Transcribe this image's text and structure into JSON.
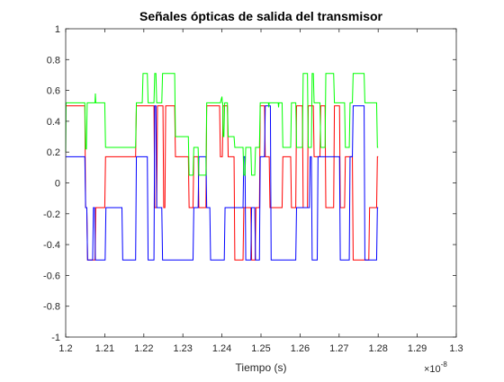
{
  "chart_data": {
    "type": "line",
    "title": "Señales ópticas de salida del transmisor",
    "xlabel": "Tiempo (s)",
    "ylabel": "",
    "x_exponent": {
      "base": "×10",
      "exp": "-8"
    },
    "xlim": [
      1.2,
      1.3
    ],
    "ylim": [
      -1,
      1
    ],
    "xticks": [
      "1.2",
      "1.21",
      "1.22",
      "1.23",
      "1.24",
      "1.25",
      "1.26",
      "1.27",
      "1.28",
      "1.29",
      "1.3"
    ],
    "yticks": [
      "-1",
      "-0.8",
      "-0.6",
      "-0.4",
      "-0.2",
      "0",
      "0.2",
      "0.4",
      "0.6",
      "0.8",
      "1"
    ],
    "grid": false,
    "legend": "none",
    "series": [
      {
        "color": "#ff0000",
        "x": [
          1.2,
          1.2049,
          1.2051,
          1.2054,
          1.2056,
          1.2075,
          1.2077,
          1.21,
          1.2102,
          1.2179,
          1.2181,
          1.2226,
          1.2228,
          1.2233,
          1.2235,
          1.2249,
          1.2251,
          1.2254,
          1.2256,
          1.2279,
          1.2281,
          1.2314,
          1.2316,
          1.2326,
          1.2328,
          1.2339,
          1.2341,
          1.2359,
          1.2361,
          1.2394,
          1.2396,
          1.2401,
          1.2403,
          1.2414,
          1.2416,
          1.2431,
          1.2433,
          1.2454,
          1.2456,
          1.2474,
          1.2476,
          1.2485,
          1.2487,
          1.2496,
          1.2498,
          1.2509,
          1.2511,
          1.2521,
          1.2523,
          1.2554,
          1.2556,
          1.2576,
          1.2578,
          1.2589,
          1.2591,
          1.2606,
          1.2608,
          1.2619,
          1.2621,
          1.2634,
          1.2636,
          1.2651,
          1.2653,
          1.2664,
          1.2666,
          1.2686,
          1.2688,
          1.2701,
          1.2703,
          1.2714,
          1.2716,
          1.2734,
          1.2736,
          1.2776,
          1.2778,
          1.2796,
          1.2798,
          1.28
        ],
        "y": [
          0.5,
          0.5,
          -0.16,
          -0.16,
          -0.5,
          -0.5,
          -0.16,
          -0.16,
          0.17,
          0.17,
          0.5,
          0.5,
          -0.16,
          -0.16,
          0.5,
          0.5,
          -0.16,
          -0.16,
          0.5,
          0.5,
          0.17,
          0.17,
          -0.16,
          -0.16,
          0.17,
          0.17,
          -0.16,
          -0.16,
          0.5,
          0.5,
          0.17,
          0.17,
          0.5,
          0.5,
          0.17,
          0.17,
          -0.5,
          -0.5,
          -0.16,
          -0.16,
          -0.5,
          -0.5,
          -0.16,
          -0.16,
          0.5,
          0.5,
          0.17,
          0.17,
          -0.16,
          -0.16,
          0.17,
          0.17,
          -0.16,
          -0.16,
          0.5,
          0.5,
          -0.16,
          -0.16,
          0.5,
          0.5,
          0.17,
          0.17,
          0.5,
          0.5,
          -0.16,
          -0.16,
          0.5,
          0.5,
          -0.16,
          -0.16,
          0.17,
          0.17,
          -0.5,
          -0.5,
          -0.16,
          -0.16,
          0.17,
          0.17
        ]
      },
      {
        "color": "#0000ff",
        "x": [
          1.2,
          1.2049,
          1.2051,
          1.2054,
          1.2056,
          1.2069,
          1.2071,
          1.2074,
          1.2076,
          1.2101,
          1.2103,
          1.2144,
          1.2146,
          1.2179,
          1.2181,
          1.2209,
          1.2211,
          1.2226,
          1.2228,
          1.2231,
          1.2233,
          1.2246,
          1.2248,
          1.2326,
          1.2328,
          1.2339,
          1.2341,
          1.2359,
          1.2361,
          1.2369,
          1.2371,
          1.2406,
          1.2408,
          1.2454,
          1.2456,
          1.2459,
          1.2461,
          1.2474,
          1.2476,
          1.2484,
          1.2486,
          1.2496,
          1.2498,
          1.2509,
          1.2511,
          1.2524,
          1.2526,
          1.2589,
          1.2591,
          1.2624,
          1.2626,
          1.2629,
          1.2631,
          1.2644,
          1.2646,
          1.2701,
          1.2703,
          1.2726,
          1.2728,
          1.2734,
          1.2736,
          1.2764,
          1.2766,
          1.2796,
          1.2798,
          1.28
        ],
        "y": [
          0.17,
          0.17,
          -0.16,
          -0.16,
          -0.5,
          -0.5,
          -0.16,
          -0.16,
          -0.5,
          -0.5,
          -0.16,
          -0.16,
          -0.5,
          -0.5,
          0.17,
          0.17,
          -0.5,
          -0.5,
          0.5,
          0.5,
          -0.16,
          -0.16,
          -0.5,
          -0.5,
          -0.16,
          -0.16,
          0.17,
          0.17,
          -0.16,
          -0.16,
          -0.5,
          -0.5,
          -0.16,
          -0.16,
          0.17,
          0.17,
          -0.5,
          -0.5,
          -0.16,
          -0.16,
          -0.5,
          -0.5,
          0.17,
          0.17,
          0.5,
          0.5,
          -0.5,
          -0.5,
          -0.16,
          -0.16,
          0.17,
          0.17,
          -0.5,
          -0.5,
          0.17,
          0.17,
          -0.5,
          -0.5,
          0.17,
          0.17,
          0.5,
          0.5,
          -0.5,
          -0.5,
          -0.16,
          -0.16
        ]
      },
      {
        "color": "#00ff00",
        "x": [
          1.2,
          1.2001,
          1.2002,
          1.2049,
          1.2051,
          1.2053,
          1.2055,
          1.2075,
          1.2076,
          1.2077,
          1.2078,
          1.21,
          1.2102,
          1.2179,
          1.2181,
          1.2196,
          1.2198,
          1.2209,
          1.2211,
          1.2226,
          1.2228,
          1.2231,
          1.2233,
          1.2246,
          1.2248,
          1.2279,
          1.2281,
          1.2314,
          1.2316,
          1.2326,
          1.2328,
          1.2339,
          1.2341,
          1.2359,
          1.2361,
          1.2369,
          1.2371,
          1.2394,
          1.2396,
          1.24,
          1.2401,
          1.2402,
          1.2403,
          1.2405,
          1.2407,
          1.2414,
          1.2416,
          1.2431,
          1.2433,
          1.2454,
          1.2456,
          1.2459,
          1.2461,
          1.2474,
          1.2476,
          1.2484,
          1.2486,
          1.2496,
          1.2498,
          1.2509,
          1.2511,
          1.2519,
          1.252,
          1.2521,
          1.2523,
          1.2544,
          1.2545,
          1.2546,
          1.2554,
          1.2556,
          1.2576,
          1.2578,
          1.2589,
          1.2591,
          1.2606,
          1.2608,
          1.2619,
          1.2621,
          1.2629,
          1.2631,
          1.2634,
          1.2636,
          1.2651,
          1.2653,
          1.2664,
          1.2666,
          1.2686,
          1.2688,
          1.2701,
          1.2703,
          1.2714,
          1.2716,
          1.2726,
          1.2728,
          1.2734,
          1.2736,
          1.2764,
          1.2766,
          1.2776,
          1.2778,
          1.2796,
          1.2798,
          1.28
        ],
        "y": [
          0.2,
          0.52,
          0.52,
          0.52,
          0.22,
          0.22,
          0.52,
          0.52,
          0.58,
          0.52,
          0.52,
          0.52,
          0.23,
          0.23,
          0.52,
          0.52,
          0.71,
          0.71,
          0.52,
          0.52,
          0.71,
          0.71,
          0.52,
          0.52,
          0.71,
          0.71,
          0.3,
          0.3,
          0.05,
          0.05,
          0.23,
          0.23,
          0.05,
          0.05,
          0.52,
          0.52,
          0.52,
          0.52,
          0.52,
          0.56,
          0.52,
          0.52,
          0.3,
          0.3,
          0.52,
          0.52,
          0.3,
          0.3,
          0.23,
          0.23,
          0.05,
          0.05,
          0.23,
          0.23,
          0.05,
          0.05,
          0.23,
          0.23,
          0.52,
          0.52,
          0.52,
          0.52,
          0.49,
          0.52,
          0.52,
          0.52,
          0.49,
          0.52,
          0.52,
          0.23,
          0.23,
          0.52,
          0.52,
          0.23,
          0.23,
          0.71,
          0.71,
          0.23,
          0.23,
          0.71,
          0.71,
          0.52,
          0.52,
          0.23,
          0.23,
          0.71,
          0.71,
          0.52,
          0.52,
          0.52,
          0.52,
          0.23,
          0.23,
          0.52,
          0.52,
          0.71,
          0.71,
          0.52,
          0.52,
          0.52,
          0.52,
          0.23,
          0.23
        ]
      }
    ]
  }
}
